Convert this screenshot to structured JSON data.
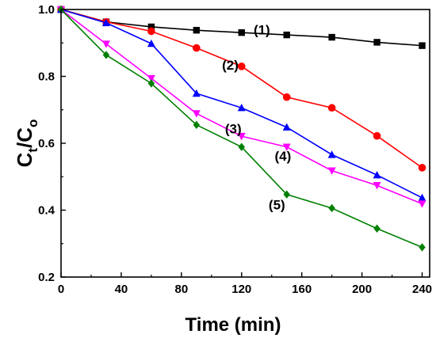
{
  "chart_data": {
    "type": "line",
    "xlabel": "Time (min)",
    "ylabel": {
      "main": "C",
      "sub1": "t",
      "sep": "/C",
      "sub2": "o"
    },
    "xlim": [
      0,
      245
    ],
    "ylim": [
      0.2,
      1.0
    ],
    "x_ticks": [
      0,
      40,
      80,
      120,
      160,
      200,
      240
    ],
    "y_ticks": [
      0.2,
      0.4,
      0.6,
      0.8,
      1.0
    ],
    "x_tick_labels": [
      "0",
      "40",
      "80",
      "120",
      "160",
      "200",
      "240"
    ],
    "y_tick_labels": [
      "0.2",
      "0.4",
      "0.6",
      "0.8",
      "1.0"
    ],
    "grid": false,
    "x": [
      0,
      30,
      60,
      90,
      120,
      150,
      180,
      210,
      240
    ],
    "series": [
      {
        "label": "(1)",
        "color": "#000000",
        "marker": "square",
        "values": [
          1.0,
          0.963,
          0.948,
          0.938,
          0.931,
          0.924,
          0.917,
          0.902,
          0.892
        ],
        "label_at": [
          128,
          0.925
        ]
      },
      {
        "label": "(2)",
        "color": "#ff0000",
        "marker": "circle",
        "values": [
          1.0,
          0.963,
          0.935,
          0.885,
          0.83,
          0.738,
          0.706,
          0.622,
          0.527
        ],
        "label_at": [
          107,
          0.82
        ]
      },
      {
        "label": "(3)",
        "color": "#0000ff",
        "marker": "triangle-up",
        "values": [
          1.0,
          0.96,
          0.898,
          0.749,
          0.706,
          0.648,
          0.566,
          0.505,
          0.437
        ],
        "label_at": [
          109,
          0.63
        ]
      },
      {
        "label": "(4)",
        "color": "#ff00ff",
        "marker": "triangle-down",
        "values": [
          1.0,
          0.897,
          0.794,
          0.689,
          0.621,
          0.589,
          0.518,
          0.474,
          0.419
        ],
        "label_at": [
          142,
          0.548
        ]
      },
      {
        "label": "(5)",
        "color": "#008000",
        "marker": "diamond",
        "values": [
          1.0,
          0.864,
          0.779,
          0.655,
          0.589,
          0.447,
          0.406,
          0.345,
          0.289
        ],
        "label_at": [
          138,
          0.402
        ]
      }
    ]
  }
}
